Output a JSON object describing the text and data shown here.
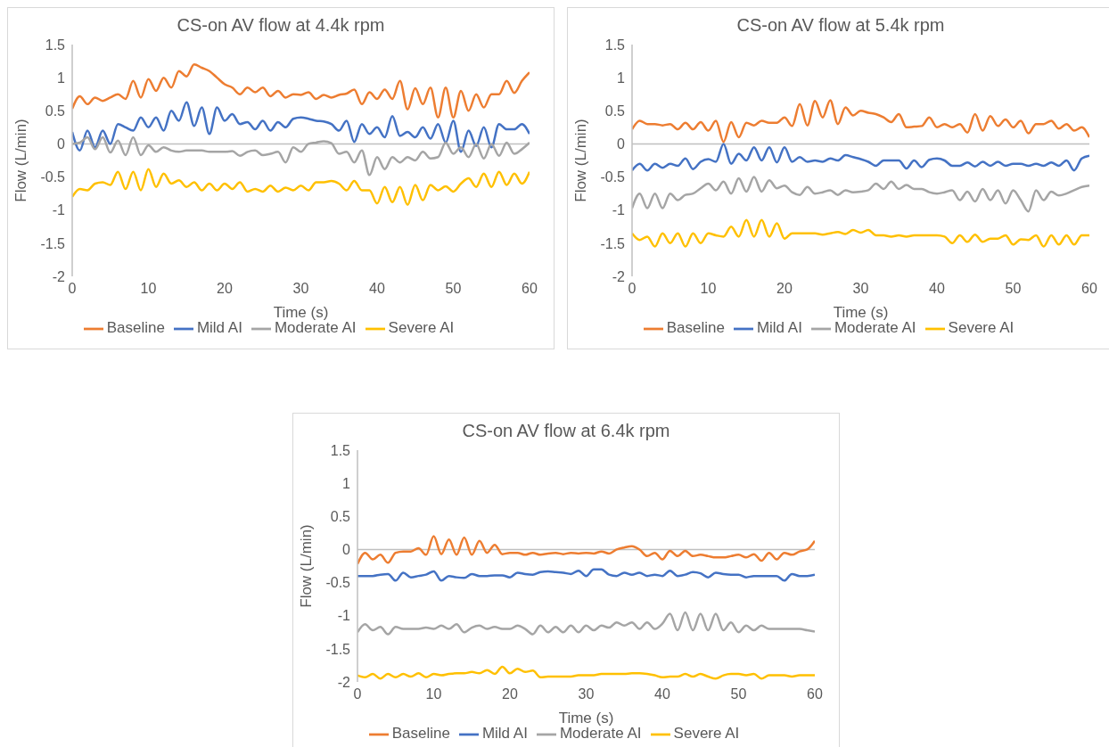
{
  "chart_data": [
    {
      "type": "line",
      "title": "CS-on AV flow at 4.4k rpm",
      "xlabel": "Time (s)",
      "ylabel": "Flow (L/min)",
      "xlim": [
        0,
        60
      ],
      "xticks": [
        0,
        10,
        20,
        30,
        40,
        50,
        60
      ],
      "ylim": [
        -2,
        1.5
      ],
      "yticks": [
        -2,
        -1.5,
        -1,
        -0.5,
        0,
        0.5,
        1,
        1.5
      ],
      "grid": false,
      "legend": "bottom",
      "marker": "none",
      "line_style": "solid",
      "ref_lines": [
        {
          "axis": "y",
          "value": 0,
          "color": "#bfbfbf"
        }
      ],
      "x": [
        0,
        1,
        2,
        3,
        4,
        5,
        6,
        7,
        8,
        9,
        10,
        11,
        12,
        13,
        14,
        15,
        16,
        17,
        18,
        19,
        20,
        21,
        22,
        23,
        24,
        25,
        26,
        27,
        28,
        29,
        30,
        31,
        32,
        33,
        34,
        35,
        36,
        37,
        38,
        39,
        40,
        41,
        42,
        43,
        44,
        45,
        46,
        47,
        48,
        49,
        50,
        51,
        52,
        53,
        54,
        55,
        56,
        57,
        58,
        59,
        60
      ],
      "series": [
        {
          "name": "Baseline",
          "color": "#ed7d31",
          "values": [
            0.53,
            0.72,
            0.6,
            0.7,
            0.65,
            0.7,
            0.75,
            0.68,
            0.95,
            0.7,
            0.98,
            0.8,
            1.0,
            0.85,
            1.1,
            1.02,
            1.2,
            1.15,
            1.1,
            1.0,
            0.9,
            0.85,
            0.75,
            0.85,
            0.78,
            0.85,
            0.72,
            0.8,
            0.7,
            0.75,
            0.74,
            0.78,
            0.68,
            0.74,
            0.7,
            0.74,
            0.76,
            0.82,
            0.6,
            0.78,
            0.68,
            0.82,
            0.68,
            0.95,
            0.52,
            0.84,
            0.6,
            0.85,
            0.4,
            0.85,
            0.4,
            0.8,
            0.5,
            0.75,
            0.55,
            0.75,
            0.75,
            0.95,
            0.77,
            0.95,
            1.08
          ]
        },
        {
          "name": "Mild AI",
          "color": "#4472c4",
          "values": [
            0.18,
            -0.1,
            0.2,
            -0.05,
            0.2,
            0,
            0.3,
            0.25,
            0.2,
            0.4,
            0.25,
            0.4,
            0.2,
            0.5,
            0.35,
            0.63,
            0.27,
            0.55,
            0.15,
            0.55,
            0.35,
            0.45,
            0.3,
            0.33,
            0.22,
            0.35,
            0.2,
            0.33,
            0.25,
            0.38,
            0.4,
            0.38,
            0.35,
            0.34,
            0.3,
            0.2,
            0.35,
            0.03,
            0.3,
            0.15,
            0.25,
            0.1,
            0.42,
            0.12,
            0.18,
            0.1,
            0.25,
            0.08,
            0.3,
            0.02,
            0.35,
            -0.12,
            0.2,
            -0.03,
            0.25,
            -0.05,
            0.3,
            0.22,
            0.22,
            0.3,
            0.15
          ]
        },
        {
          "name": "Moderate AI",
          "color": "#a5a5a5",
          "values": [
            0,
            0.02,
            0.1,
            -0.08,
            0.1,
            -0.13,
            0.05,
            -0.17,
            0.1,
            -0.17,
            -0.02,
            -0.12,
            -0.05,
            -0.1,
            -0.12,
            -0.1,
            -0.1,
            -0.1,
            -0.12,
            -0.12,
            -0.12,
            -0.11,
            -0.18,
            -0.12,
            -0.1,
            -0.17,
            -0.15,
            -0.12,
            -0.28,
            -0.05,
            -0.12,
            0,
            0.02,
            0.04,
            0.01,
            -0.15,
            -0.12,
            -0.28,
            -0.1,
            -0.47,
            -0.2,
            -0.38,
            -0.2,
            -0.28,
            -0.2,
            -0.25,
            -0.12,
            -0.22,
            -0.2,
            0.02,
            -0.15,
            -0.05,
            -0.2,
            0,
            -0.22,
            0,
            -0.18,
            0.02,
            -0.15,
            -0.08,
            0.02
          ]
        },
        {
          "name": "Severe AI",
          "color": "#ffc000",
          "values": [
            -0.8,
            -0.68,
            -0.7,
            -0.6,
            -0.58,
            -0.62,
            -0.42,
            -0.68,
            -0.42,
            -0.7,
            -0.38,
            -0.65,
            -0.45,
            -0.6,
            -0.55,
            -0.65,
            -0.58,
            -0.7,
            -0.6,
            -0.7,
            -0.6,
            -0.68,
            -0.58,
            -0.72,
            -0.68,
            -0.72,
            -0.63,
            -0.72,
            -0.66,
            -0.7,
            -0.63,
            -0.7,
            -0.58,
            -0.58,
            -0.56,
            -0.6,
            -0.7,
            -0.56,
            -0.7,
            -0.7,
            -0.9,
            -0.65,
            -0.88,
            -0.65,
            -0.92,
            -0.62,
            -0.85,
            -0.62,
            -0.7,
            -0.64,
            -0.72,
            -0.6,
            -0.52,
            -0.65,
            -0.45,
            -0.65,
            -0.42,
            -0.62,
            -0.45,
            -0.6,
            -0.42
          ]
        }
      ]
    },
    {
      "type": "line",
      "title": "CS-on AV flow at 5.4k rpm",
      "xlabel": "Time (s)",
      "ylabel": "Flow (L/min)",
      "xlim": [
        0,
        60
      ],
      "xticks": [
        0,
        10,
        20,
        30,
        40,
        50,
        60
      ],
      "ylim": [
        -2,
        1.5
      ],
      "yticks": [
        -2,
        -1.5,
        -1,
        -0.5,
        0,
        0.5,
        1,
        1.5
      ],
      "grid": false,
      "legend": "bottom",
      "marker": "none",
      "line_style": "solid",
      "ref_lines": [
        {
          "axis": "y",
          "value": 0,
          "color": "#bfbfbf"
        }
      ],
      "x": [
        0,
        1,
        2,
        3,
        4,
        5,
        6,
        7,
        8,
        9,
        10,
        11,
        12,
        13,
        14,
        15,
        16,
        17,
        18,
        19,
        20,
        21,
        22,
        23,
        24,
        25,
        26,
        27,
        28,
        29,
        30,
        31,
        32,
        33,
        34,
        35,
        36,
        37,
        38,
        39,
        40,
        41,
        42,
        43,
        44,
        45,
        46,
        47,
        48,
        49,
        50,
        51,
        52,
        53,
        54,
        55,
        56,
        57,
        58,
        59,
        60
      ],
      "series": [
        {
          "name": "Baseline",
          "color": "#ed7d31",
          "values": [
            0.22,
            0.35,
            0.3,
            0.3,
            0.28,
            0.3,
            0.22,
            0.32,
            0.22,
            0.33,
            0.2,
            0.35,
            0.03,
            0.33,
            0.1,
            0.32,
            0.28,
            0.35,
            0.32,
            0.32,
            0.4,
            0.27,
            0.6,
            0.28,
            0.65,
            0.4,
            0.66,
            0.3,
            0.55,
            0.43,
            0.5,
            0.47,
            0.45,
            0.4,
            0.33,
            0.45,
            0.25,
            0.26,
            0.27,
            0.4,
            0.25,
            0.3,
            0.25,
            0.3,
            0.17,
            0.45,
            0.2,
            0.42,
            0.27,
            0.37,
            0.25,
            0.35,
            0.16,
            0.3,
            0.3,
            0.35,
            0.23,
            0.3,
            0.2,
            0.25,
            0.1
          ]
        },
        {
          "name": "Mild AI",
          "color": "#4472c4",
          "values": [
            -0.4,
            -0.3,
            -0.4,
            -0.3,
            -0.36,
            -0.3,
            -0.33,
            -0.22,
            -0.38,
            -0.27,
            -0.23,
            -0.27,
            0,
            -0.3,
            -0.15,
            -0.25,
            -0.05,
            -0.25,
            -0.05,
            -0.28,
            -0.05,
            -0.27,
            -0.2,
            -0.27,
            -0.25,
            -0.27,
            -0.22,
            -0.25,
            -0.17,
            -0.2,
            -0.23,
            -0.27,
            -0.33,
            -0.25,
            -0.25,
            -0.25,
            -0.37,
            -0.25,
            -0.35,
            -0.24,
            -0.22,
            -0.25,
            -0.33,
            -0.33,
            -0.28,
            -0.34,
            -0.27,
            -0.33,
            -0.27,
            -0.33,
            -0.3,
            -0.3,
            -0.33,
            -0.3,
            -0.33,
            -0.28,
            -0.33,
            -0.25,
            -0.4,
            -0.22,
            -0.18
          ]
        },
        {
          "name": "Moderate AI",
          "color": "#a5a5a5",
          "values": [
            -0.97,
            -0.75,
            -0.97,
            -0.75,
            -0.97,
            -0.75,
            -0.85,
            -0.77,
            -0.75,
            -0.67,
            -0.6,
            -0.7,
            -0.57,
            -0.75,
            -0.52,
            -0.72,
            -0.5,
            -0.72,
            -0.55,
            -0.67,
            -0.63,
            -0.73,
            -0.77,
            -0.65,
            -0.75,
            -0.73,
            -0.7,
            -0.77,
            -0.7,
            -0.73,
            -0.72,
            -0.7,
            -0.6,
            -0.68,
            -0.57,
            -0.68,
            -0.62,
            -0.68,
            -0.68,
            -0.73,
            -0.75,
            -0.73,
            -0.7,
            -0.85,
            -0.72,
            -0.87,
            -0.68,
            -0.85,
            -0.7,
            -0.9,
            -0.7,
            -0.85,
            -1.02,
            -0.7,
            -0.85,
            -0.72,
            -0.78,
            -0.75,
            -0.7,
            -0.65,
            -0.63
          ]
        },
        {
          "name": "Severe AI",
          "color": "#ffc000",
          "values": [
            -1.35,
            -1.45,
            -1.4,
            -1.55,
            -1.35,
            -1.5,
            -1.35,
            -1.55,
            -1.35,
            -1.5,
            -1.35,
            -1.38,
            -1.4,
            -1.25,
            -1.4,
            -1.15,
            -1.4,
            -1.15,
            -1.4,
            -1.2,
            -1.43,
            -1.35,
            -1.35,
            -1.35,
            -1.35,
            -1.37,
            -1.35,
            -1.33,
            -1.36,
            -1.3,
            -1.34,
            -1.3,
            -1.38,
            -1.38,
            -1.4,
            -1.38,
            -1.4,
            -1.38,
            -1.38,
            -1.38,
            -1.38,
            -1.4,
            -1.5,
            -1.38,
            -1.48,
            -1.37,
            -1.48,
            -1.43,
            -1.43,
            -1.38,
            -1.52,
            -1.44,
            -1.45,
            -1.38,
            -1.55,
            -1.38,
            -1.52,
            -1.38,
            -1.52,
            -1.38,
            -1.38
          ]
        }
      ]
    },
    {
      "type": "line",
      "title": "CS-on AV flow at 6.4k rpm",
      "xlabel": "Time (s)",
      "ylabel": "Flow (L/min)",
      "xlim": [
        0,
        60
      ],
      "xticks": [
        0,
        10,
        20,
        30,
        40,
        50,
        60
      ],
      "ylim": [
        -2,
        1.5
      ],
      "yticks": [
        -2,
        -1.5,
        -1,
        -0.5,
        0,
        0.5,
        1,
        1.5
      ],
      "grid": false,
      "legend": "bottom",
      "marker": "none",
      "line_style": "solid",
      "ref_lines": [
        {
          "axis": "y",
          "value": 0,
          "color": "#bfbfbf"
        }
      ],
      "x": [
        0,
        1,
        2,
        3,
        4,
        5,
        6,
        7,
        8,
        9,
        10,
        11,
        12,
        13,
        14,
        15,
        16,
        17,
        18,
        19,
        20,
        21,
        22,
        23,
        24,
        25,
        26,
        27,
        28,
        29,
        30,
        31,
        32,
        33,
        34,
        35,
        36,
        37,
        38,
        39,
        40,
        41,
        42,
        43,
        44,
        45,
        46,
        47,
        48,
        49,
        50,
        51,
        52,
        53,
        54,
        55,
        56,
        57,
        58,
        59,
        60
      ],
      "series": [
        {
          "name": "Baseline",
          "color": "#ed7d31",
          "values": [
            -0.22,
            -0.05,
            -0.15,
            -0.08,
            -0.2,
            -0.05,
            -0.03,
            -0.03,
            0.02,
            -0.08,
            0.2,
            -0.07,
            0.15,
            -0.08,
            0.18,
            -0.08,
            0.13,
            -0.05,
            0.07,
            -0.07,
            -0.05,
            -0.05,
            -0.08,
            -0.05,
            -0.08,
            -0.06,
            -0.05,
            -0.07,
            -0.05,
            -0.06,
            -0.05,
            -0.06,
            -0.03,
            -0.06,
            0,
            0.03,
            0.05,
            0,
            -0.1,
            -0.05,
            -0.15,
            -0.02,
            -0.1,
            -0.02,
            -0.1,
            -0.08,
            -0.1,
            -0.12,
            -0.12,
            -0.1,
            -0.08,
            -0.12,
            -0.07,
            -0.17,
            -0.05,
            -0.15,
            -0.05,
            -0.08,
            -0.03,
            0,
            0.13
          ]
        },
        {
          "name": "Mild AI",
          "color": "#4472c4",
          "values": [
            -0.4,
            -0.4,
            -0.4,
            -0.38,
            -0.37,
            -0.47,
            -0.35,
            -0.42,
            -0.4,
            -0.38,
            -0.33,
            -0.47,
            -0.4,
            -0.42,
            -0.43,
            -0.37,
            -0.4,
            -0.4,
            -0.39,
            -0.39,
            -0.42,
            -0.35,
            -0.37,
            -0.38,
            -0.34,
            -0.33,
            -0.34,
            -0.35,
            -0.37,
            -0.32,
            -0.4,
            -0.3,
            -0.3,
            -0.38,
            -0.4,
            -0.35,
            -0.38,
            -0.35,
            -0.4,
            -0.38,
            -0.4,
            -0.32,
            -0.4,
            -0.38,
            -0.34,
            -0.36,
            -0.42,
            -0.35,
            -0.37,
            -0.38,
            -0.38,
            -0.42,
            -0.4,
            -0.4,
            -0.4,
            -0.4,
            -0.47,
            -0.37,
            -0.4,
            -0.4,
            -0.38
          ]
        },
        {
          "name": "Moderate AI",
          "color": "#a5a5a5",
          "values": [
            -1.25,
            -1.13,
            -1.22,
            -1.17,
            -1.28,
            -1.17,
            -1.2,
            -1.2,
            -1.2,
            -1.18,
            -1.2,
            -1.15,
            -1.2,
            -1.13,
            -1.25,
            -1.18,
            -1.15,
            -1.2,
            -1.17,
            -1.2,
            -1.2,
            -1.15,
            -1.2,
            -1.28,
            -1.15,
            -1.25,
            -1.17,
            -1.25,
            -1.15,
            -1.25,
            -1.15,
            -1.22,
            -1.15,
            -1.18,
            -1.1,
            -1.15,
            -1.1,
            -1.2,
            -1.1,
            -1.2,
            -1.12,
            -0.97,
            -1.22,
            -0.95,
            -1.22,
            -0.97,
            -1.22,
            -0.97,
            -1.22,
            -1.1,
            -1.25,
            -1.15,
            -1.22,
            -1.15,
            -1.2,
            -1.2,
            -1.2,
            -1.2,
            -1.2,
            -1.22,
            -1.24
          ]
        },
        {
          "name": "Severe AI",
          "color": "#ffc000",
          "values": [
            -1.9,
            -1.93,
            -1.88,
            -1.95,
            -1.88,
            -1.93,
            -1.88,
            -1.92,
            -1.87,
            -1.93,
            -1.88,
            -1.9,
            -1.88,
            -1.87,
            -1.87,
            -1.85,
            -1.87,
            -1.82,
            -1.88,
            -1.77,
            -1.87,
            -1.8,
            -1.85,
            -1.83,
            -1.93,
            -1.92,
            -1.92,
            -1.92,
            -1.92,
            -1.9,
            -1.9,
            -1.9,
            -1.88,
            -1.88,
            -1.88,
            -1.88,
            -1.87,
            -1.87,
            -1.88,
            -1.9,
            -1.93,
            -1.92,
            -1.92,
            -1.88,
            -1.92,
            -1.88,
            -1.92,
            -1.95,
            -1.9,
            -1.88,
            -1.88,
            -1.9,
            -1.88,
            -1.95,
            -1.9,
            -1.9,
            -1.9,
            -1.92,
            -1.9,
            -1.9,
            -1.9
          ]
        }
      ]
    }
  ]
}
